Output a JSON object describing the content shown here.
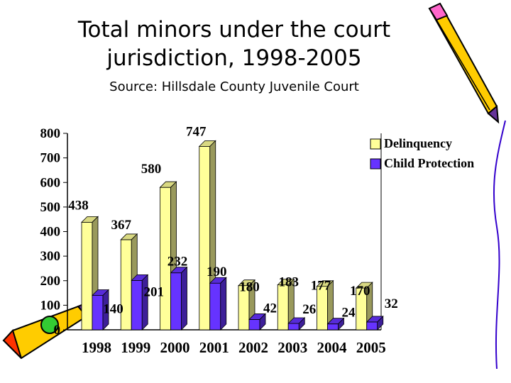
{
  "chart_data": {
    "type": "bar",
    "title": "Total minors under the court jurisdiction, 1998-2005",
    "subtitle": "Source: Hillsdale County Juvenile Court",
    "categories": [
      "1998",
      "1999",
      "2000",
      "2001",
      "2002",
      "2003",
      "2004",
      "2005"
    ],
    "series": [
      {
        "name": "Delinquency",
        "values": [
          438,
          367,
          580,
          747,
          180,
          183,
          177,
          170
        ],
        "color": "#FFFF99"
      },
      {
        "name": "Child Protection",
        "values": [
          140,
          201,
          232,
          190,
          42,
          26,
          24,
          32
        ],
        "color": "#6633FF"
      }
    ],
    "yticks": [
      0,
      100,
      200,
      300,
      400,
      500,
      600,
      700,
      800
    ],
    "ylim": [
      0,
      800
    ],
    "legend": "top-right",
    "grid": false
  }
}
